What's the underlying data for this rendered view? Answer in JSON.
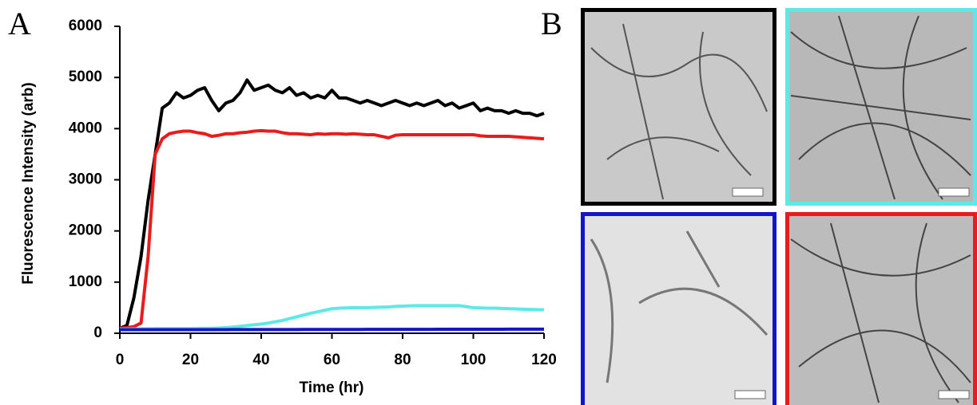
{
  "panel_labels": [
    "A",
    "B"
  ],
  "chart_data": {
    "type": "line",
    "x_label": "Time (hr)",
    "y_label": "Fluorescence Intensity (arb)",
    "xlim": [
      0,
      120
    ],
    "xticks": [
      0,
      20,
      40,
      60,
      80,
      100,
      120
    ],
    "ylim": [
      0,
      6000
    ],
    "yticks": [
      0,
      1000,
      2000,
      3000,
      4000,
      5000,
      6000
    ],
    "grid": false,
    "x": [
      0,
      2,
      4,
      6,
      8,
      10,
      12,
      14,
      16,
      18,
      20,
      22,
      24,
      26,
      28,
      30,
      32,
      34,
      36,
      38,
      40,
      42,
      44,
      46,
      48,
      50,
      52,
      54,
      56,
      58,
      60,
      62,
      64,
      66,
      68,
      70,
      72,
      74,
      76,
      78,
      80,
      82,
      84,
      86,
      88,
      90,
      92,
      94,
      96,
      98,
      100,
      102,
      104,
      106,
      108,
      110,
      112,
      114,
      116,
      118,
      120
    ],
    "series": [
      {
        "color": "#000000",
        "values": [
          100,
          150,
          700,
          1500,
          2600,
          3500,
          4400,
          4500,
          4700,
          4600,
          4650,
          4750,
          4800,
          4550,
          4350,
          4500,
          4550,
          4700,
          4950,
          4750,
          4800,
          4850,
          4750,
          4700,
          4800,
          4650,
          4700,
          4600,
          4650,
          4600,
          4750,
          4600,
          4600,
          4550,
          4500,
          4550,
          4500,
          4450,
          4500,
          4550,
          4500,
          4450,
          4500,
          4450,
          4500,
          4550,
          4450,
          4500,
          4400,
          4450,
          4500,
          4350,
          4400,
          4350,
          4350,
          4300,
          4350,
          4300,
          4300,
          4250,
          4300
        ]
      },
      {
        "color": "#e81c1c",
        "values": [
          100,
          110,
          130,
          200,
          1500,
          3500,
          3800,
          3900,
          3930,
          3950,
          3950,
          3920,
          3900,
          3850,
          3870,
          3900,
          3900,
          3920,
          3930,
          3950,
          3960,
          3950,
          3950,
          3920,
          3900,
          3900,
          3890,
          3880,
          3900,
          3890,
          3900,
          3900,
          3890,
          3900,
          3890,
          3880,
          3880,
          3850,
          3820,
          3870,
          3880,
          3880,
          3880,
          3880,
          3880,
          3880,
          3880,
          3880,
          3880,
          3880,
          3880,
          3860,
          3850,
          3850,
          3850,
          3850,
          3840,
          3830,
          3820,
          3810,
          3800
        ]
      },
      {
        "color": "#5ee8e8",
        "values": [
          80,
          82,
          84,
          86,
          88,
          90,
          90,
          90,
          90,
          90,
          90,
          92,
          95,
          98,
          102,
          110,
          120,
          135,
          150,
          165,
          180,
          200,
          225,
          250,
          285,
          320,
          355,
          390,
          420,
          450,
          480,
          490,
          495,
          500,
          500,
          500,
          505,
          510,
          515,
          525,
          530,
          535,
          540,
          540,
          540,
          540,
          540,
          540,
          540,
          520,
          500,
          495,
          490,
          490,
          485,
          480,
          475,
          470,
          465,
          462,
          460
        ]
      },
      {
        "color": "#1414c8",
        "values": [
          70,
          70,
          70,
          70,
          70,
          70,
          70,
          70,
          70,
          70,
          70,
          70,
          70,
          70,
          70,
          70,
          72,
          72,
          72,
          72,
          72,
          72,
          72,
          72,
          72,
          72,
          74,
          74,
          74,
          74,
          74,
          74,
          74,
          74,
          74,
          76,
          76,
          76,
          76,
          76,
          76,
          76,
          76,
          76,
          76,
          78,
          78,
          78,
          78,
          78,
          78,
          78,
          78,
          78,
          78,
          80,
          80,
          80,
          80,
          80,
          80
        ]
      }
    ]
  }
}
